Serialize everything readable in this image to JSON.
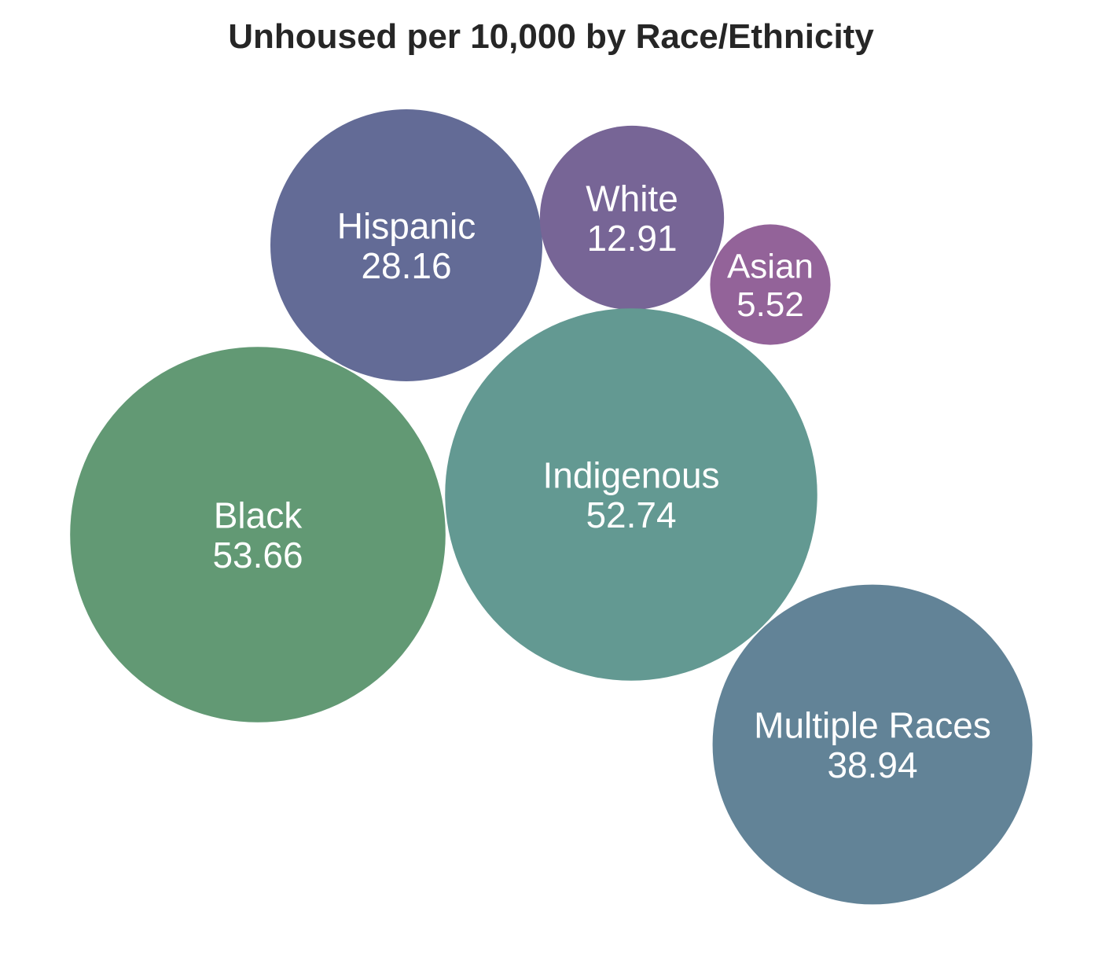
{
  "chart_data": {
    "type": "bubble",
    "title": "Unhoused per 10,000 by Race/Ethnicity",
    "xlabel": "",
    "ylabel": "",
    "grid": false,
    "legend": "none",
    "categories": [
      "Hispanic",
      "White",
      "Asian",
      "Black",
      "Indigenous",
      "Multiple Races"
    ],
    "values": [
      28.16,
      12.91,
      5.52,
      53.66,
      52.74,
      38.94
    ],
    "value_labels": [
      "28.16",
      "12.91",
      "5.52",
      "53.66",
      "52.74",
      "38.94"
    ],
    "colors": [
      "#636b96",
      "#776596",
      "#936399",
      "#629974",
      "#639992",
      "#628397"
    ],
    "label_color": "#ffffff"
  }
}
